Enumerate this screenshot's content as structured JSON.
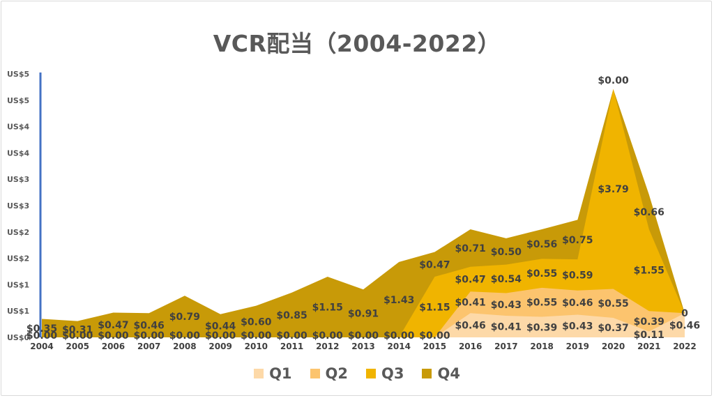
{
  "chart_data": {
    "type": "area",
    "title": "VCR配当（2004-2022）",
    "x": [
      "2004",
      "2005",
      "2006",
      "2007",
      "2008",
      "2009",
      "2010",
      "2011",
      "2012",
      "2013",
      "2014",
      "2015",
      "2016",
      "2017",
      "2018",
      "2019",
      "2020",
      "2021",
      "2022"
    ],
    "series": [
      {
        "name": "Q1",
        "color": "#fdd9a8",
        "values": [
          0,
          0,
          0,
          0,
          0,
          0,
          0,
          0,
          0,
          0,
          0,
          0,
          0.46,
          0.41,
          0.39,
          0.43,
          0.37,
          0.11,
          0.46
        ],
        "labels": [
          "$0.00",
          "$0.00",
          "$0.00",
          "$0.00",
          "$0.00",
          "$0.00",
          "$0.00",
          "$0.00",
          "$0.00",
          "$0.00",
          "$0.00",
          "$0.00",
          "$0.46",
          "$0.41",
          "$0.39",
          "$0.43",
          "$0.37",
          "$0.11",
          "$0.46"
        ]
      },
      {
        "name": "Q2",
        "color": "#fcc46e",
        "values": [
          0,
          0,
          0,
          0,
          0,
          0,
          0,
          0,
          0,
          0,
          0,
          0,
          0.41,
          0.43,
          0.55,
          0.46,
          0.55,
          0.39,
          0
        ],
        "labels": [
          "",
          "",
          "",
          "",
          "",
          "",
          "",
          "",
          "",
          "",
          "",
          "",
          "$0.41",
          "$0.43",
          "$0.55",
          "$0.46",
          "$0.55",
          "$0.39",
          ""
        ]
      },
      {
        "name": "Q3",
        "color": "#f0b400",
        "values": [
          0,
          0,
          0,
          0,
          0,
          0,
          0,
          0,
          0,
          0,
          0,
          1.15,
          0.47,
          0.54,
          0.55,
          0.59,
          3.79,
          1.55,
          0
        ],
        "labels": [
          "",
          "",
          "",
          "",
          "",
          "",
          "",
          "",
          "",
          "",
          "",
          "$1.15",
          "$0.47",
          "$0.54",
          "$0.55",
          "$0.59",
          "$3.79",
          "$1.55",
          ""
        ]
      },
      {
        "name": "Q4",
        "color": "#c89a08",
        "values": [
          0.35,
          0.31,
          0.47,
          0.46,
          0.79,
          0.44,
          0.6,
          0.85,
          1.15,
          0.91,
          1.43,
          0.47,
          0.71,
          0.5,
          0.56,
          0.75,
          0,
          0.66,
          0
        ],
        "labels": [
          "$0.35",
          "$0.31",
          "$0.47",
          "$0.46",
          "$0.79",
          "$0.44",
          "$0.60",
          "$0.85",
          "$1.15",
          "$0.91",
          "$1.43",
          "$0.47",
          "$0.71",
          "$0.50",
          "$0.56",
          "$0.75",
          "$0.00",
          "$0.66",
          "0"
        ]
      }
    ],
    "y_ticks": [
      "US$5",
      "US$5",
      "US$4",
      "US$4",
      "US$3",
      "US$3",
      "US$2",
      "US$2",
      "US$1",
      "US$1",
      "US$0"
    ],
    "ylim": [
      0,
      5
    ],
    "axis_color": "#4472c4",
    "legend_position": "bottom",
    "grid": false
  }
}
